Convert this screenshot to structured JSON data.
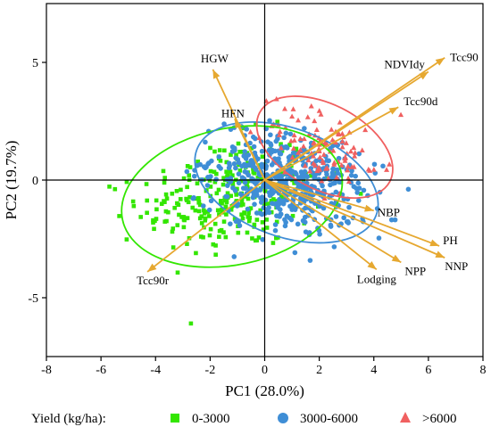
{
  "chart_data": {
    "type": "scatter",
    "xlabel": "PC1 (28.0%)",
    "ylabel": "PC2 (19.7%)",
    "xlim": [
      -8,
      8
    ],
    "ylim": [
      -7.5,
      7.5
    ],
    "xticks": [
      -8,
      -6,
      -4,
      -2,
      0,
      2,
      4,
      6,
      8
    ],
    "yticks": [
      -5,
      0,
      5
    ],
    "grid": false,
    "zero_lines": true,
    "legend": {
      "title": "Yield (kg/ha):",
      "placement": "bottom",
      "entries": [
        {
          "label": "0-3000",
          "color": "#33e600",
          "marker": "square"
        },
        {
          "label": "3000-6000",
          "color": "#3f8ed6",
          "marker": "circle"
        },
        {
          "label": ">6000",
          "color": "#f06060",
          "marker": "triangle"
        }
      ]
    },
    "series": [
      {
        "name": "0-3000",
        "color": "#33e600",
        "marker": "square",
        "ellipse": {
          "center": [
            -1.2,
            -0.7
          ],
          "rx": 4.1,
          "ry": 2.9,
          "angle_deg": 12
        }
      },
      {
        "name": "3000-6000",
        "color": "#3f8ed6",
        "marker": "circle",
        "ellipse": {
          "center": [
            0.8,
            -0.1
          ],
          "rx": 3.5,
          "ry": 2.3,
          "angle_deg": -20
        }
      },
      {
        "name": ">6000",
        "color": "#f06060",
        "marker": "triangle",
        "ellipse": {
          "center": [
            2.2,
            1.4
          ],
          "rx": 2.7,
          "ry": 1.8,
          "angle_deg": -28
        }
      }
    ],
    "loadings": {
      "color": "#e6a830",
      "vectors": [
        {
          "name": "Tcc90",
          "x": 6.6,
          "y": 5.2
        },
        {
          "name": "NDVIdy",
          "x": 6.0,
          "y": 4.6
        },
        {
          "name": "Tcc90d",
          "x": 4.9,
          "y": 3.1
        },
        {
          "name": "HGW",
          "x": -1.9,
          "y": 4.7
        },
        {
          "name": "HFN",
          "x": -1.1,
          "y": 2.6
        },
        {
          "name": "NBP",
          "x": 4.0,
          "y": -1.3
        },
        {
          "name": "PH",
          "x": 6.4,
          "y": -2.8
        },
        {
          "name": "NNP",
          "x": 6.6,
          "y": -3.3
        },
        {
          "name": "NPP",
          "x": 5.0,
          "y": -3.5
        },
        {
          "name": "Lodging",
          "x": 4.1,
          "y": -3.8
        },
        {
          "name": "Tcc90r",
          "x": -4.3,
          "y": -3.9
        }
      ]
    }
  }
}
